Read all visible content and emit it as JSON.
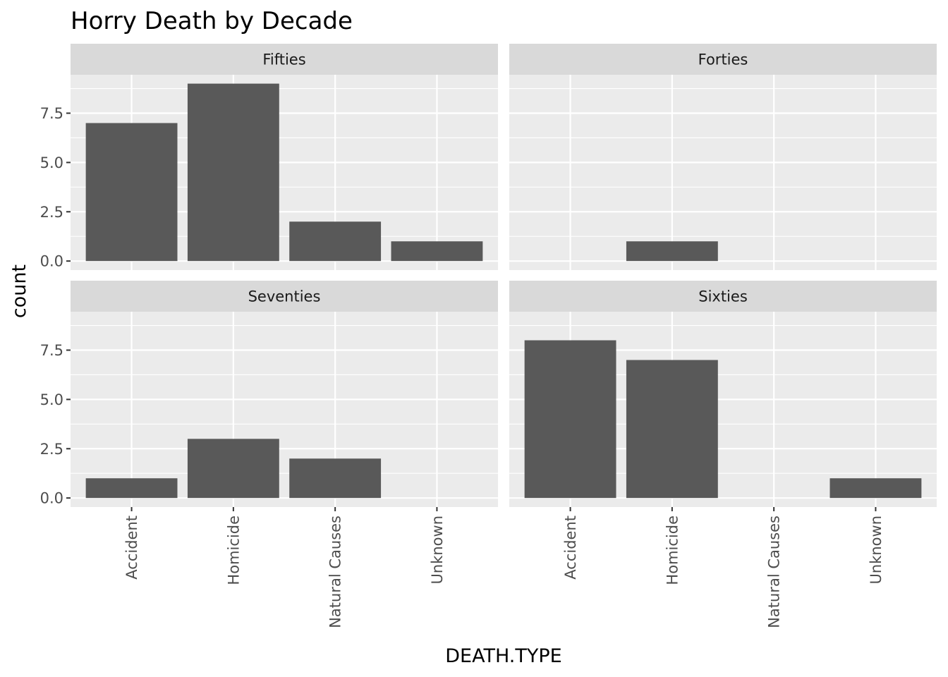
{
  "chart_data": {
    "type": "bar",
    "title": "Horry Death by Decade",
    "xlabel": "DEATH.TYPE",
    "ylabel": "count",
    "categories": [
      "Accident",
      "Homicide",
      "Natural Causes",
      "Unknown"
    ],
    "ylim": [
      0,
      9
    ],
    "yticks": [
      0,
      2.5,
      5,
      7.5
    ],
    "ytick_labels": [
      "0.0",
      "2.5",
      "5.0",
      "7.5"
    ],
    "grid": true,
    "bar_color": "#595959",
    "panel_background": "#ebebeb",
    "strip_background": "#d9d9d9",
    "grid_color": "#ffffff",
    "facets": [
      {
        "name": "Fifties",
        "values": [
          7,
          9,
          2,
          1
        ]
      },
      {
        "name": "Forties",
        "values": [
          0,
          1,
          0,
          0
        ]
      },
      {
        "name": "Seventies",
        "values": [
          1,
          3,
          2,
          0
        ]
      },
      {
        "name": "Sixties",
        "values": [
          8,
          7,
          0,
          1
        ]
      }
    ]
  }
}
